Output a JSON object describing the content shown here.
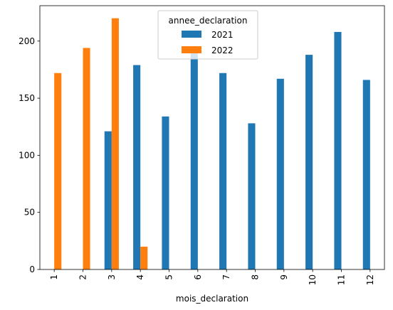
{
  "chart_data": {
    "type": "bar",
    "xlabel": "mois_declaration",
    "ylabel": "",
    "ylim": [
      0,
      231
    ],
    "yticks": [
      0,
      50,
      100,
      150,
      200
    ],
    "categories": [
      "1",
      "2",
      "3",
      "4",
      "5",
      "6",
      "7",
      "8",
      "9",
      "10",
      "11",
      "12"
    ],
    "legend": {
      "title": "annee_declaration",
      "placement": "top-center"
    },
    "series": [
      {
        "name": "2021",
        "color": "#1f77b4",
        "values": [
          0,
          0,
          121,
          179,
          134,
          192,
          172,
          128,
          167,
          188,
          208,
          166
        ]
      },
      {
        "name": "2022",
        "color": "#ff7f0e",
        "values": [
          172,
          194,
          220,
          20,
          0,
          0,
          0,
          0,
          0,
          0,
          0,
          0
        ]
      }
    ]
  }
}
